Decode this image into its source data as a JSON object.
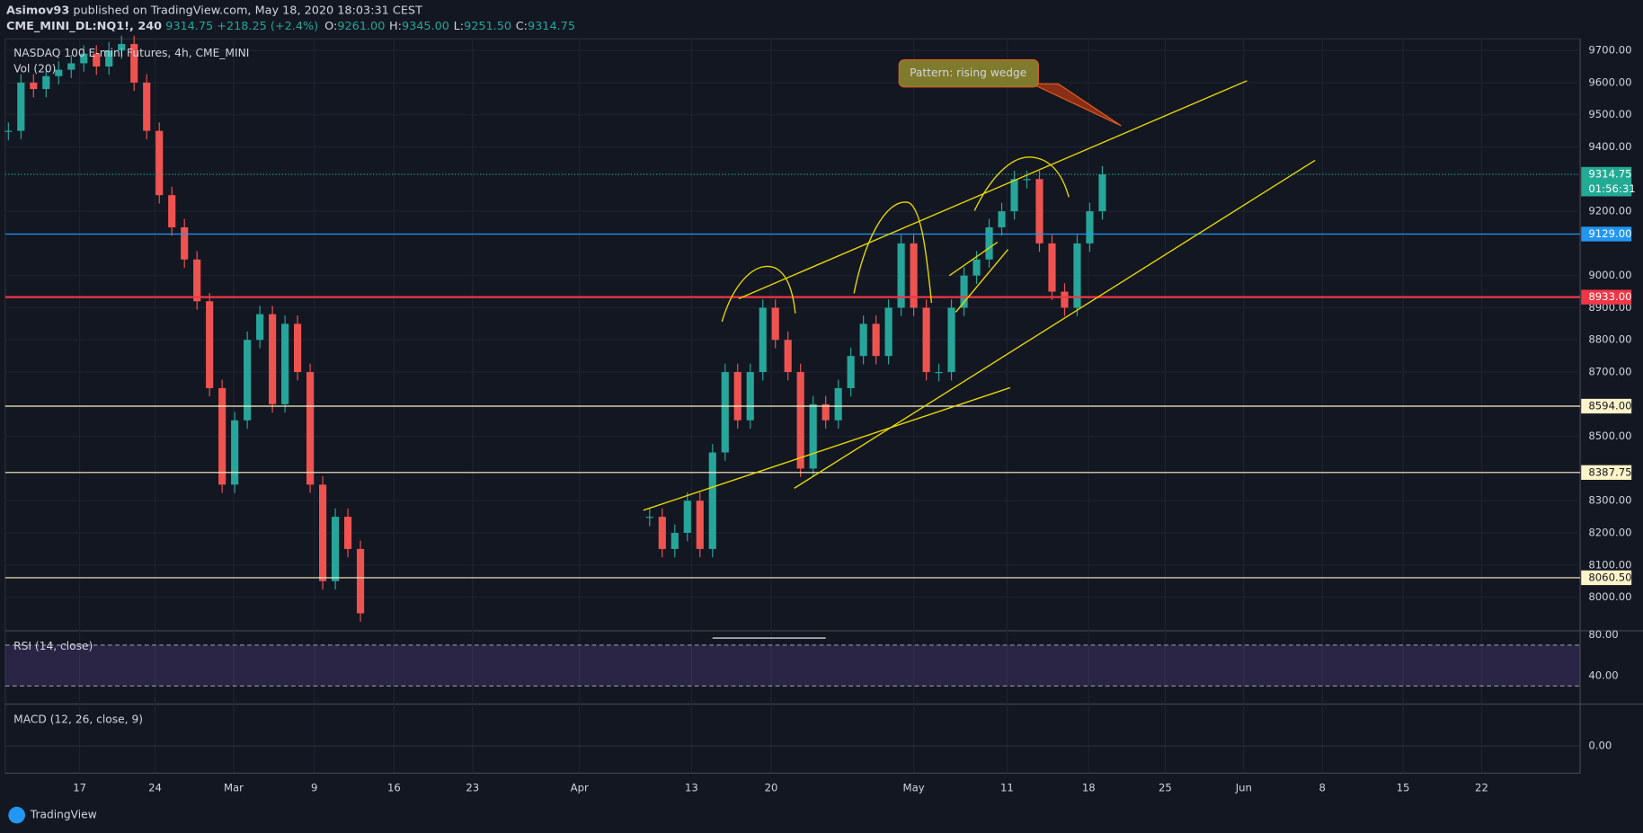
{
  "header": {
    "author": "Asimov93",
    "published": "published on TradingView.com, May 18, 2020 18:03:31 CEST",
    "symbol": "CME_MINI_DL:NQ1!, 240",
    "last": "9314.75",
    "change": "+218.25 (+2.4%)",
    "ohlc": [
      {
        "key": "O:",
        "value": "9261.00"
      },
      {
        "key": "H:",
        "value": "9345.00"
      },
      {
        "key": "L:",
        "value": "9251.50"
      },
      {
        "key": "C:",
        "value": "9314.75"
      }
    ]
  },
  "chart": {
    "title": "NASDAQ 100 E-mini Futures, 4h, CME_MINI",
    "volume_label": "Vol (20)",
    "ylim": [
      7899,
      9736
    ],
    "price_ticks": [
      {
        "value": 9700,
        "label": "9700.00"
      },
      {
        "value": 9600,
        "label": "9600.00"
      },
      {
        "value": 9500,
        "label": "9500.00"
      },
      {
        "value": 9400,
        "label": "9400.00"
      },
      {
        "value": 9200,
        "label": "9200.00"
      },
      {
        "value": 9000,
        "label": "9000.00"
      },
      {
        "value": 8900,
        "label": "8900.00"
      },
      {
        "value": 8800,
        "label": "8800.00"
      },
      {
        "value": 8700,
        "label": "8700.00"
      },
      {
        "value": 8500,
        "label": "8500.00"
      },
      {
        "value": 8300,
        "label": "8300.00"
      },
      {
        "value": 8200,
        "label": "8200.00"
      },
      {
        "value": 8100,
        "label": "8100.00"
      },
      {
        "value": 8000,
        "label": "8000.00"
      }
    ],
    "levels": [
      {
        "value": 9129,
        "label": "9129.00",
        "color": "#2196f3"
      },
      {
        "value": 8933,
        "label": "8933.00",
        "color": "#f23645"
      },
      {
        "value": 8594,
        "label": "8594.00",
        "color": "#fff3c8"
      },
      {
        "value": 8387.75,
        "label": "8387.75",
        "color": "#fff3c8"
      },
      {
        "value": 8060.5,
        "label": "8060.50",
        "color": "#fff3c8"
      }
    ],
    "current": {
      "value": 9314.75,
      "label": "9314.75",
      "countdown": "01:56:31",
      "color": "#22ab94"
    },
    "dates": [
      "17",
      "24",
      "Mar",
      "9",
      "16",
      "23",
      "Apr",
      "13",
      "20",
      "May",
      "11",
      "18",
      "25",
      "Jun",
      "8",
      "15",
      "22"
    ],
    "closes": [
      9450,
      9600,
      9580,
      9620,
      9640,
      9660,
      9690,
      9650,
      9700,
      9720,
      9600,
      9450,
      9250,
      9150,
      9050,
      8920,
      8650,
      8350,
      8550,
      8800,
      8880,
      8600,
      8850,
      8700,
      8350,
      8050,
      8250,
      8150,
      7950,
      null,
      null,
      null,
      null,
      null,
      null,
      null,
      null,
      null,
      null,
      null,
      null,
      null,
      null,
      null,
      null,
      null,
      null,
      null,
      null,
      null,
      null,
      8250,
      8150,
      8200,
      8300,
      8150,
      8450,
      8700,
      8550,
      8700,
      8900,
      8800,
      8700,
      8400,
      8600,
      8550,
      8650,
      8750,
      8850,
      8750,
      8900,
      9100,
      8900,
      8700,
      8700,
      8900,
      9000,
      9050,
      9150,
      9200,
      9300,
      9300,
      9100,
      8950,
      8900,
      9100,
      9200,
      9314.75
    ],
    "annotation": "Pattern: rising wedge"
  },
  "rsi": {
    "title": "RSI (14, close)",
    "ylim": [
      12.3,
      84.1
    ],
    "band": [
      30,
      70
    ],
    "ticks": [
      {
        "value": 80,
        "label": "80.00"
      },
      {
        "value": 40,
        "label": "40.00"
      }
    ]
  },
  "macd": {
    "title": "MACD (12, 26, close, 9)",
    "ticks": [
      {
        "value": 0,
        "label": "0.00"
      }
    ]
  },
  "brand": "TradingView"
}
